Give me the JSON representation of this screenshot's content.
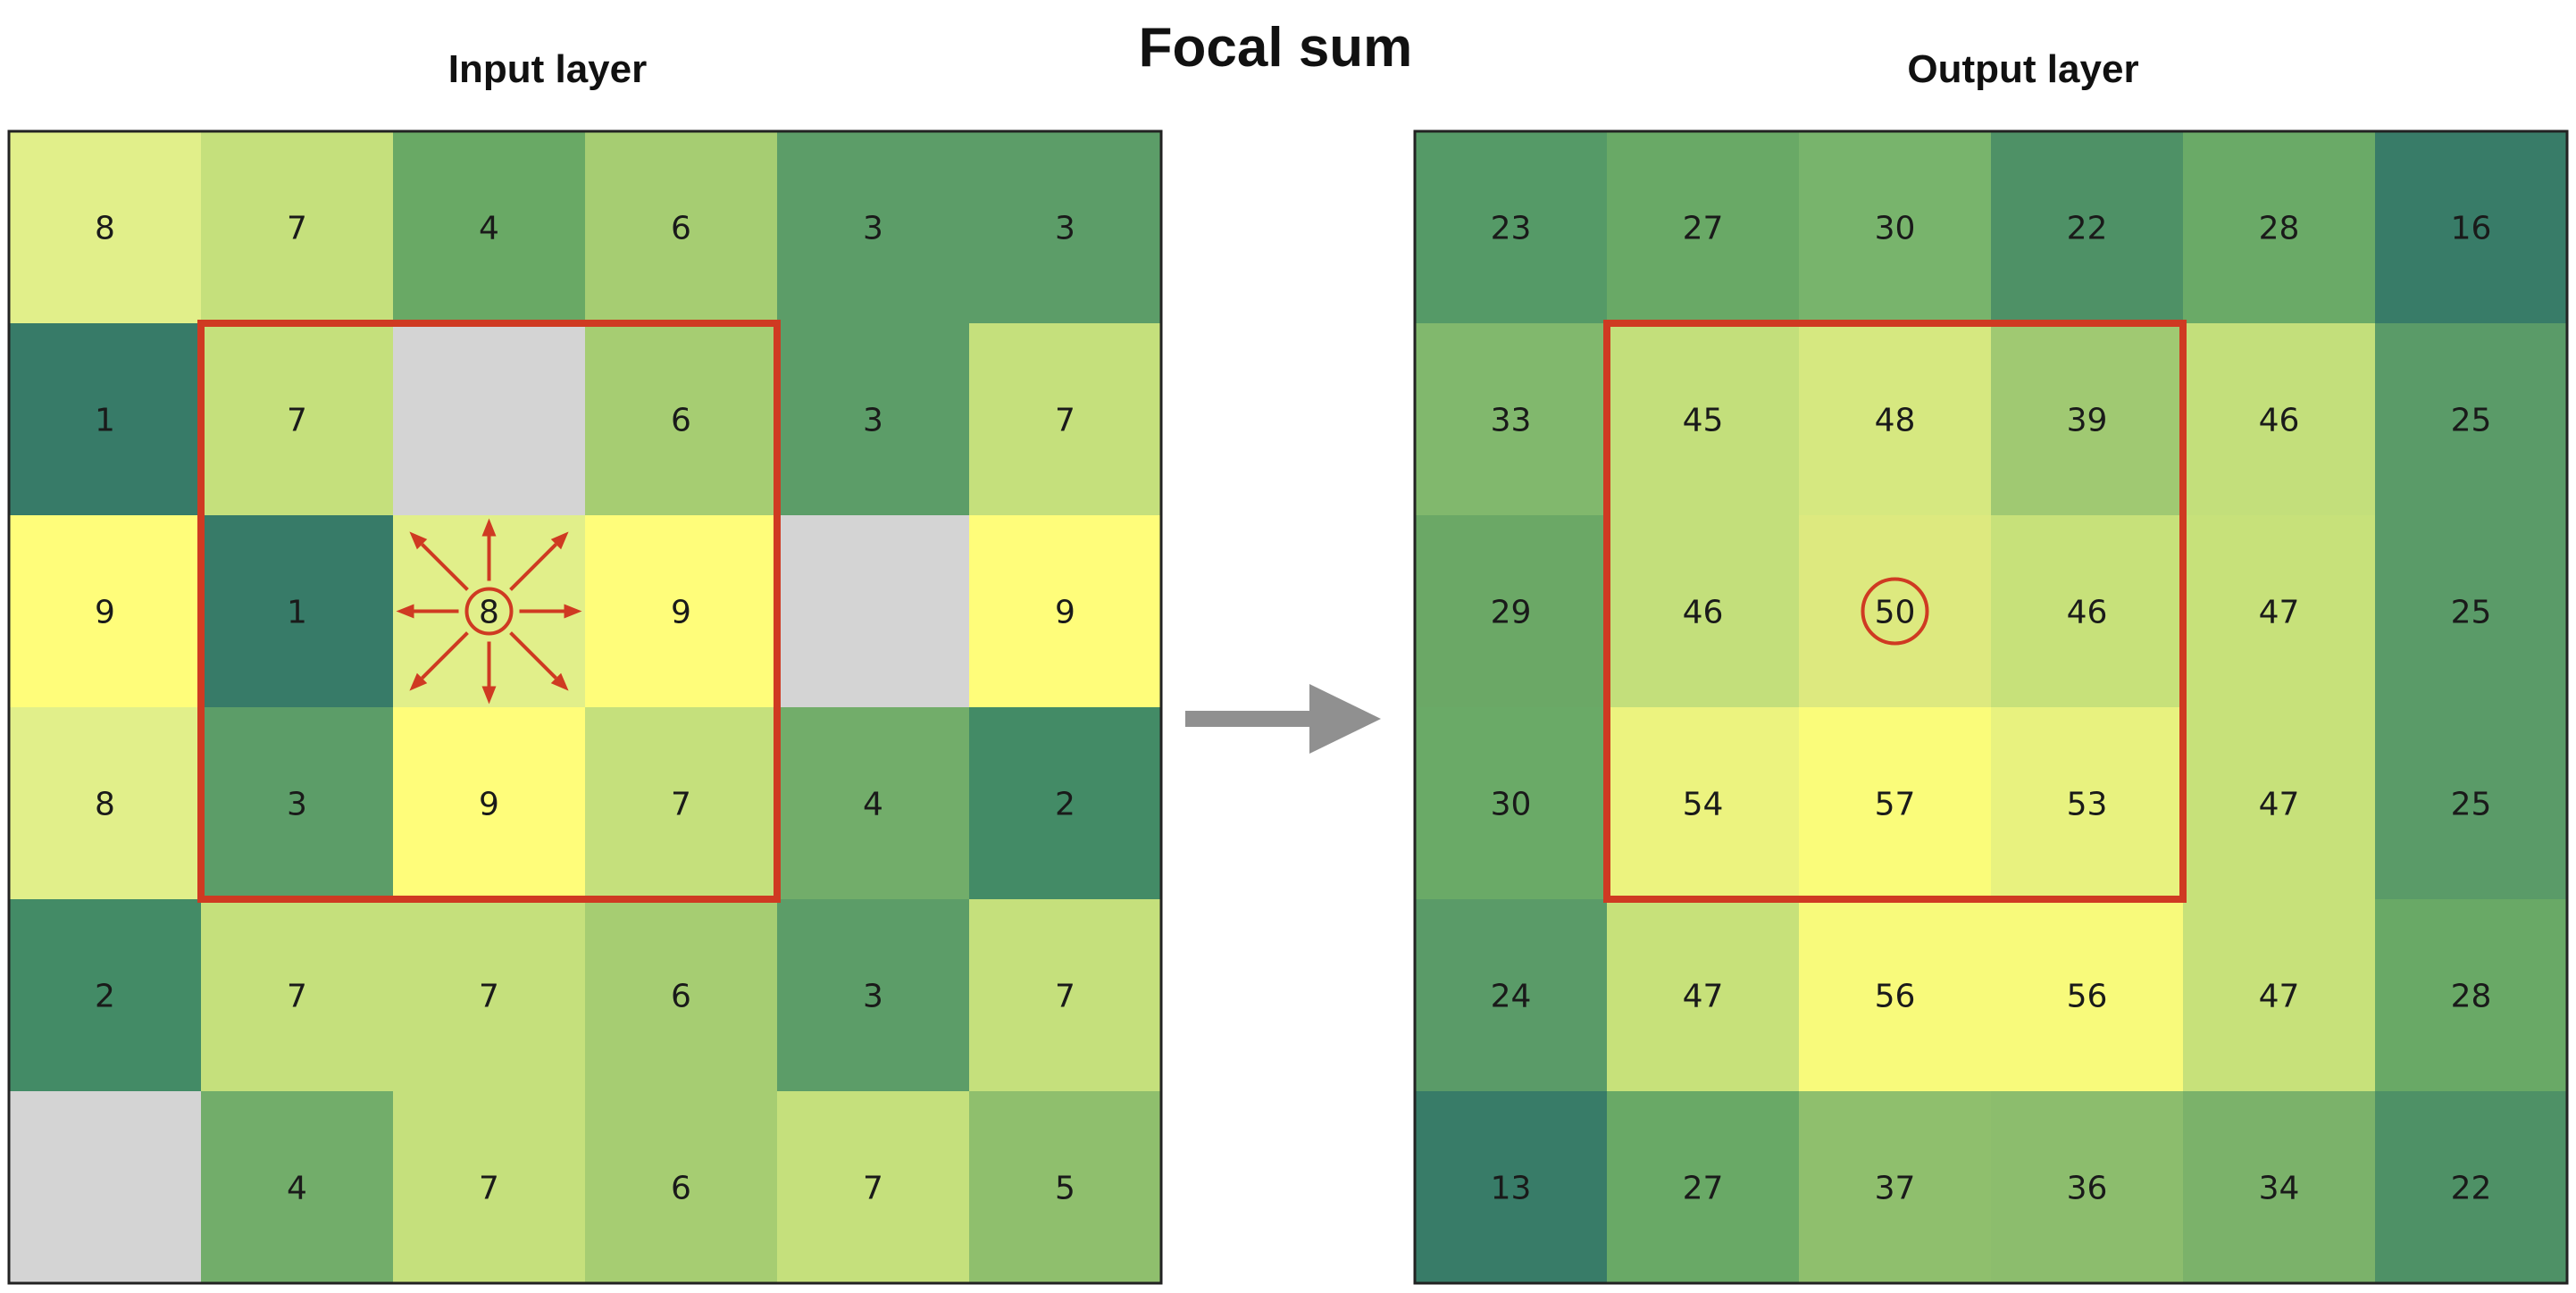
{
  "title": "Focal sum",
  "input": {
    "label": "Input layer",
    "values": [
      [
        8,
        7,
        4,
        6,
        3,
        3
      ],
      [
        1,
        7,
        null,
        6,
        3,
        7
      ],
      [
        9,
        1,
        8,
        9,
        null,
        9
      ],
      [
        8,
        3,
        9,
        7,
        4,
        2
      ],
      [
        2,
        7,
        7,
        6,
        3,
        7
      ],
      [
        null,
        4,
        7,
        6,
        7,
        5
      ]
    ]
  },
  "output": {
    "label": "Output layer",
    "values": [
      [
        23,
        27,
        30,
        22,
        28,
        16
      ],
      [
        33,
        45,
        48,
        39,
        46,
        25
      ],
      [
        29,
        46,
        50,
        46,
        47,
        25
      ],
      [
        30,
        54,
        57,
        53,
        47,
        25
      ],
      [
        24,
        47,
        56,
        56,
        47,
        28
      ],
      [
        13,
        27,
        37,
        36,
        34,
        22
      ]
    ]
  },
  "colors": {
    "input": [
      [
        "#e1ef8a",
        "#c5e07c",
        "#69a965",
        "#a6cd72",
        "#5c9d68",
        "#5c9d68"
      ],
      [
        "#377b68",
        "#c5e07c",
        "#d4d4d4",
        "#a6cd72",
        "#5c9d68",
        "#c5e07c"
      ],
      [
        "#fffd7a",
        "#377b68",
        "#e1ef8a",
        "#fffd7a",
        "#d4d4d4",
        "#fffd7a"
      ],
      [
        "#e1ef8a",
        "#5c9d68",
        "#fffd7a",
        "#c5e07c",
        "#72ad6a",
        "#438b66"
      ],
      [
        "#438b66",
        "#c5e07c",
        "#c5e07c",
        "#a6cd72",
        "#5c9d68",
        "#c5e07c"
      ],
      [
        "#d4d4d4",
        "#72ad6a",
        "#c5e07c",
        "#a6cd72",
        "#c5e07c",
        "#8fbf6d"
      ]
    ],
    "output": [
      [
        "#559a67",
        "#69a966",
        "#78b46c",
        "#4e9166",
        "#6aaa67",
        "#387c68"
      ],
      [
        "#81b86d",
        "#c3df7b",
        "#d6e880",
        "#a0c972",
        "#c3df7b",
        "#5a9b68"
      ],
      [
        "#6ba866",
        "#c3df7b",
        "#dde97f",
        "#c7e17a",
        "#c7e17a",
        "#5a9b68"
      ],
      [
        "#6aaa67",
        "#ecf37f",
        "#fafc7a",
        "#e8f27f",
        "#c7e17a",
        "#5a9b68"
      ],
      [
        "#5a9b68",
        "#c7e17a",
        "#f8fa7b",
        "#f8fa7b",
        "#c7e17a",
        "#69a966"
      ],
      [
        "#387c68",
        "#69a966",
        "#8fbf6d",
        "#8cbd6d",
        "#7bb26a",
        "#4e9166"
      ]
    ],
    "highlight": "#cf3a22",
    "arrow": "#909090",
    "grid_border": "#222222"
  },
  "window": {
    "row_start": 1,
    "col_start": 1,
    "rows": 3,
    "cols": 3
  },
  "focus_cell": {
    "row": 2,
    "col": 2
  },
  "arrow_icon": "right-arrow-icon"
}
